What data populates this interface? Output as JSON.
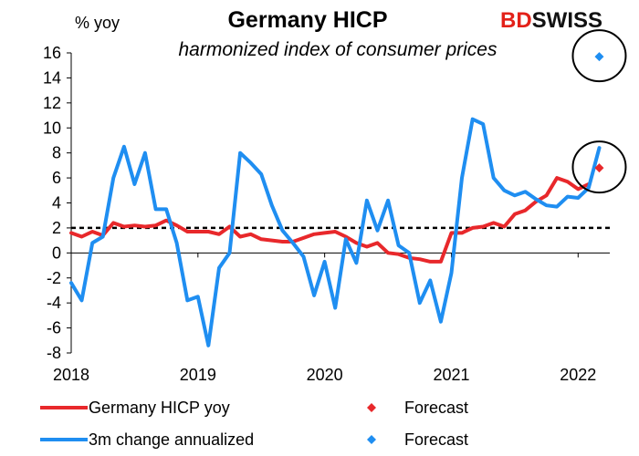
{
  "brand": {
    "part1": "BD",
    "part2": "SWISS"
  },
  "chart_data": {
    "type": "line",
    "title": "Germany HICP",
    "subtitle": "harmonized index of consumer prices",
    "ylabel": "% yoy",
    "ylim": [
      -8,
      16
    ],
    "yticks": [
      16,
      14,
      12,
      10,
      8,
      6,
      4,
      2,
      0,
      -2,
      -4,
      -6,
      -8
    ],
    "xlim": [
      2018.0,
      2022.25
    ],
    "xticks": [
      {
        "label": "2018",
        "value": 2018
      },
      {
        "label": "2019",
        "value": 2019
      },
      {
        "label": "2020",
        "value": 2020
      },
      {
        "label": "2021",
        "value": 2021
      },
      {
        "label": "2022",
        "value": 2022
      }
    ],
    "reference_line": {
      "y": 2,
      "style": "dashed",
      "color": "#000000"
    },
    "series": [
      {
        "name": "Germany HICP yoy",
        "color": "#e8282b",
        "x": [
          2018.0,
          2018.083,
          2018.167,
          2018.25,
          2018.333,
          2018.417,
          2018.5,
          2018.583,
          2018.667,
          2018.75,
          2018.833,
          2018.917,
          2019.0,
          2019.083,
          2019.167,
          2019.25,
          2019.333,
          2019.417,
          2019.5,
          2019.583,
          2019.667,
          2019.75,
          2019.833,
          2019.917,
          2020.0,
          2020.083,
          2020.167,
          2020.25,
          2020.333,
          2020.417,
          2020.5,
          2020.583,
          2020.667,
          2020.75,
          2020.833,
          2020.917,
          2021.0,
          2021.083,
          2021.167,
          2021.25,
          2021.333,
          2021.417,
          2021.5,
          2021.583,
          2021.667,
          2021.75,
          2021.833,
          2021.917,
          2022.0,
          2022.083
        ],
        "values": [
          1.6,
          1.3,
          1.7,
          1.4,
          2.4,
          2.1,
          2.2,
          2.1,
          2.2,
          2.6,
          2.2,
          1.7,
          1.7,
          1.7,
          1.5,
          2.1,
          1.3,
          1.5,
          1.1,
          1.0,
          0.9,
          0.9,
          1.2,
          1.5,
          1.6,
          1.7,
          1.3,
          0.8,
          0.5,
          0.8,
          0.0,
          -0.1,
          -0.4,
          -0.5,
          -0.7,
          -0.7,
          1.6,
          1.6,
          2.0,
          2.1,
          2.4,
          2.1,
          3.1,
          3.4,
          4.1,
          4.6,
          6.0,
          5.7,
          5.1,
          5.5
        ]
      },
      {
        "name": "3m change annualized",
        "color": "#1f8ef1",
        "x": [
          2018.0,
          2018.083,
          2018.167,
          2018.25,
          2018.333,
          2018.417,
          2018.5,
          2018.583,
          2018.667,
          2018.75,
          2018.833,
          2018.917,
          2019.0,
          2019.083,
          2019.167,
          2019.25,
          2019.333,
          2019.417,
          2019.5,
          2019.583,
          2019.667,
          2019.75,
          2019.833,
          2019.917,
          2020.0,
          2020.083,
          2020.167,
          2020.25,
          2020.333,
          2020.417,
          2020.5,
          2020.583,
          2020.667,
          2020.75,
          2020.833,
          2020.917,
          2021.0,
          2021.083,
          2021.167,
          2021.25,
          2021.333,
          2021.417,
          2021.5,
          2021.583,
          2021.667,
          2021.75,
          2021.833,
          2021.917,
          2022.0,
          2022.083,
          2022.167
        ],
        "values": [
          -2.4,
          -3.8,
          0.8,
          1.3,
          6.0,
          8.5,
          5.5,
          8.0,
          3.5,
          3.5,
          0.8,
          -3.8,
          -3.5,
          -7.4,
          -1.2,
          0.0,
          8.0,
          7.2,
          6.3,
          3.8,
          1.8,
          0.8,
          -0.3,
          -3.4,
          -0.7,
          -4.4,
          1.1,
          -0.8,
          4.2,
          1.8,
          4.2,
          0.6,
          0.0,
          -4.0,
          -2.2,
          -5.5,
          -1.6,
          6.0,
          10.7,
          10.3,
          6.0,
          5.0,
          4.6,
          4.9,
          4.3,
          3.8,
          3.7,
          4.5,
          4.4,
          5.2,
          8.4
        ]
      }
    ],
    "forecasts": [
      {
        "name": "Forecast",
        "x": 2022.167,
        "value": 6.8,
        "color": "#e8282b",
        "marker": "diamond",
        "circled": true
      },
      {
        "name": "Forecast",
        "x": 2022.167,
        "value": 15.7,
        "color": "#1f8ef1",
        "marker": "diamond",
        "circled": true
      }
    ],
    "legend": {
      "placement": "bottom",
      "entries": [
        {
          "label": "Germany HICP yoy",
          "kind": "line",
          "color": "#e8282b"
        },
        {
          "label": "Forecast",
          "kind": "diamond",
          "color": "#e8282b"
        },
        {
          "label": "3m change annualized",
          "kind": "line",
          "color": "#1f8ef1"
        },
        {
          "label": "Forecast",
          "kind": "diamond",
          "color": "#1f8ef1"
        }
      ]
    }
  }
}
